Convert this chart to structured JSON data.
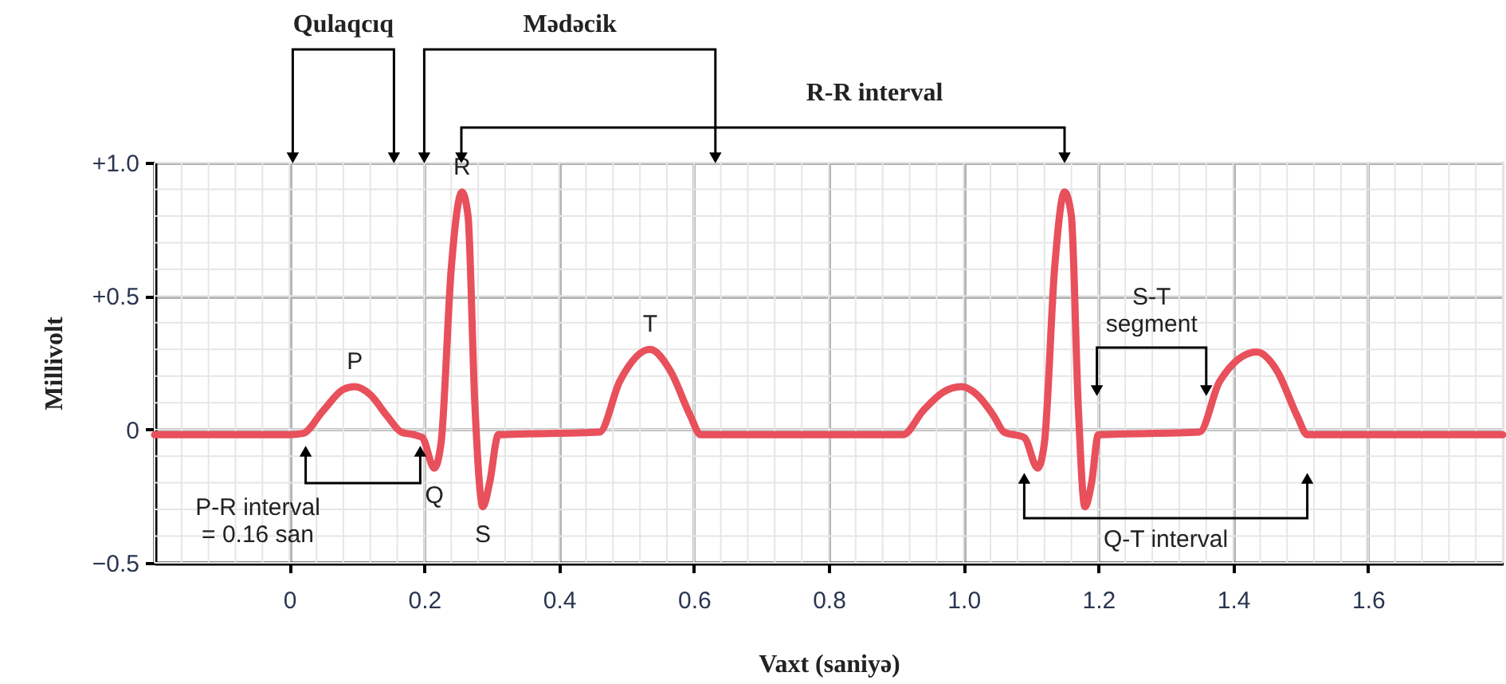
{
  "chart_data": {
    "type": "line",
    "xlabel": "Vaxt (saniyə)",
    "ylabel": "Millivolt",
    "x": [
      -0.2,
      0.0,
      0.02,
      0.05,
      0.08,
      0.097,
      0.12,
      0.145,
      0.166,
      0.185,
      0.197,
      0.215,
      0.225,
      0.24,
      0.256,
      0.265,
      0.275,
      0.287,
      0.297,
      0.31,
      0.46,
      0.49,
      0.535,
      0.565,
      0.595,
      0.61,
      0.91,
      0.94,
      0.97,
      0.997,
      1.02,
      1.045,
      1.06,
      1.09,
      1.11,
      1.12,
      1.135,
      1.15,
      1.16,
      1.17,
      1.18,
      1.19,
      1.2,
      1.35,
      1.38,
      1.435,
      1.465,
      1.495,
      1.51,
      1.8
    ],
    "series": [
      {
        "color": "#e8505b",
        "values": [
          -0.02,
          -0.02,
          -0.015,
          0.07,
          0.15,
          0.16,
          0.13,
          0.05,
          -0.01,
          -0.02,
          -0.03,
          -0.145,
          -0.05,
          0.6,
          0.89,
          0.8,
          0.1,
          -0.29,
          -0.2,
          -0.02,
          -0.01,
          0.18,
          0.3,
          0.22,
          0.05,
          -0.02,
          -0.02,
          0.07,
          0.14,
          0.16,
          0.13,
          0.05,
          -0.01,
          -0.03,
          -0.145,
          -0.05,
          0.6,
          0.89,
          0.8,
          0.1,
          -0.29,
          -0.2,
          -0.02,
          -0.01,
          0.18,
          0.29,
          0.22,
          0.05,
          -0.02,
          -0.02
        ]
      }
    ],
    "xlim": [
      -0.2,
      1.8
    ],
    "ylim": [
      -0.5,
      1.0
    ],
    "xticks": [
      0,
      0.2,
      0.4,
      0.6,
      0.8,
      {
        "value": 1.0,
        "label": "1.0"
      },
      1.2,
      1.4,
      1.6
    ],
    "yticks": [
      {
        "value": -0.5,
        "label": "−0.5"
      },
      0,
      {
        "value": 0.5,
        "label": "+0.5"
      },
      {
        "value": 1.0,
        "label": "+1.0"
      }
    ],
    "grid": true,
    "line_style": "solid",
    "annotations": [
      {
        "text": "P",
        "x": 0.097,
        "y": 0.16
      },
      {
        "text": "Q",
        "x": 0.215,
        "y": -0.145
      },
      {
        "text": "R",
        "x": 0.256,
        "y": 0.89
      },
      {
        "text": "S",
        "x": 0.287,
        "y": -0.29
      },
      {
        "text": "T",
        "x": 0.535,
        "y": 0.3
      },
      "Qulaqcıq",
      "Mədəcik",
      "R-R interval",
      "S-T\nsegment",
      "P-R interval\n= 0.16 san",
      "Q-T interval"
    ]
  }
}
